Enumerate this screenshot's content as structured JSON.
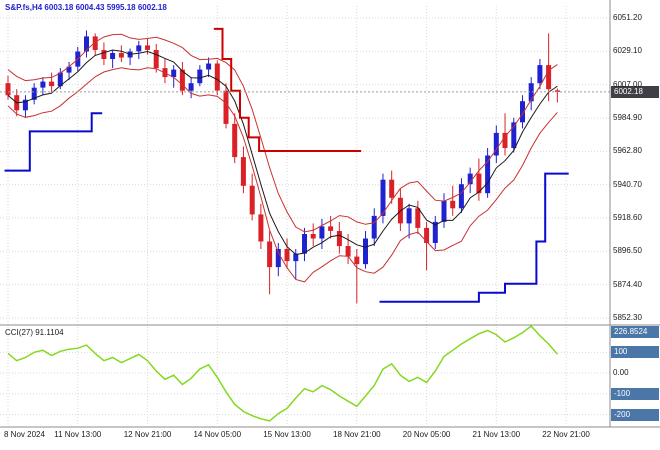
{
  "header": {
    "title_line": "S&P.fs,H4 6003.18 6004.43 5995.18 6002.18",
    "symbol": "S&P.fs",
    "timeframe": "H4",
    "open": "6003.18",
    "high": "6004.43",
    "low": "5995.18",
    "close": "6002.18"
  },
  "indicator": {
    "label": "CCI(27) 91.1104",
    "name": "CCI",
    "period": "27",
    "current_value": "91.1104"
  },
  "colors": {
    "bull": "#1f22cf",
    "bear": "#da2127",
    "trend_up": "#0a0acd",
    "trend_down": "#cc0000",
    "band": "#c83232",
    "ma": "#1a1a1a",
    "cci": "#85d822",
    "grid": "#d9d9d9",
    "axis_text": "#1a1a1a",
    "tag_price_bg": "#3f3f46",
    "tag_cci_bg": "#4a76a8",
    "title_text": "#2222cc"
  },
  "chart_data": {
    "type": "candlestick",
    "title": "S&P.fs H4 with bands, trend stop lines and CCI(27)",
    "last_price": "6002.18",
    "last_price_value": 6002.18,
    "y_axis": {
      "top_value": 6051.2,
      "step": 22.1,
      "labels": [
        "6051.20",
        "6029.10",
        "6007.00",
        "5984.90",
        "5962.80",
        "5940.70",
        "5918.60",
        "5896.50",
        "5874.40",
        "5852.30"
      ]
    },
    "x_labels": [
      {
        "text": "8 Nov 2024",
        "bar": 0
      },
      {
        "text": "11 Nov 13:00",
        "bar": 8
      },
      {
        "text": "12 Nov 21:00",
        "bar": 16
      },
      {
        "text": "14 Nov 05:00",
        "bar": 24
      },
      {
        "text": "15 Nov 13:00",
        "bar": 32
      },
      {
        "text": "18 Nov 21:00",
        "bar": 40
      },
      {
        "text": "20 Nov 05:00",
        "bar": 48
      },
      {
        "text": "21 Nov 13:00",
        "bar": 56
      },
      {
        "text": "22 Nov 21:00",
        "bar": 64
      }
    ],
    "candles": [
      [
        6008,
        6013,
        5997,
        6000
      ],
      [
        6000,
        6004,
        5986,
        5990
      ],
      [
        5990,
        6000,
        5985,
        5997
      ],
      [
        5997,
        6008,
        5994,
        6005
      ],
      [
        6005,
        6012,
        6000,
        6009
      ],
      [
        6009,
        6015,
        6002,
        6006
      ],
      [
        6006,
        6018,
        6004,
        6015
      ],
      [
        6015,
        6022,
        6010,
        6019
      ],
      [
        6019,
        6032,
        6016,
        6029
      ],
      [
        6029,
        6043,
        6025,
        6039
      ],
      [
        6039,
        6041,
        6026,
        6030
      ],
      [
        6030,
        6035,
        6020,
        6024
      ],
      [
        6024,
        6030,
        6018,
        6028
      ],
      [
        6028,
        6033,
        6022,
        6025
      ],
      [
        6025,
        6031,
        6020,
        6029
      ],
      [
        6029,
        6036,
        6024,
        6033
      ],
      [
        6033,
        6038,
        6027,
        6030
      ],
      [
        6030,
        6034,
        6015,
        6018
      ],
      [
        6018,
        6024,
        6008,
        6012
      ],
      [
        6012,
        6020,
        6005,
        6017
      ],
      [
        6017,
        6022,
        6000,
        6003
      ],
      [
        6003,
        6012,
        5998,
        6008
      ],
      [
        6008,
        6020,
        6006,
        6017
      ],
      [
        6017,
        6025,
        6012,
        6021
      ],
      [
        6021,
        6023,
        6000,
        6003
      ],
      [
        6003,
        6008,
        5978,
        5981
      ],
      [
        5981,
        5988,
        5955,
        5959
      ],
      [
        5959,
        5966,
        5935,
        5940
      ],
      [
        5940,
        5948,
        5917,
        5921
      ],
      [
        5921,
        5928,
        5898,
        5903
      ],
      [
        5903,
        5910,
        5868,
        5886
      ],
      [
        5886,
        5902,
        5880,
        5898
      ],
      [
        5898,
        5905,
        5885,
        5890
      ],
      [
        5890,
        5898,
        5878,
        5895
      ],
      [
        5895,
        5912,
        5890,
        5908
      ],
      [
        5908,
        5915,
        5900,
        5905
      ],
      [
        5905,
        5918,
        5898,
        5913
      ],
      [
        5913,
        5920,
        5905,
        5910
      ],
      [
        5910,
        5916,
        5895,
        5900
      ],
      [
        5900,
        5908,
        5888,
        5893
      ],
      [
        5893,
        5898,
        5862,
        5888
      ],
      [
        5888,
        5910,
        5885,
        5905
      ],
      [
        5905,
        5925,
        5900,
        5920
      ],
      [
        5920,
        5948,
        5915,
        5944
      ],
      [
        5944,
        5950,
        5928,
        5932
      ],
      [
        5932,
        5938,
        5910,
        5915
      ],
      [
        5915,
        5928,
        5905,
        5925
      ],
      [
        5925,
        5930,
        5908,
        5912
      ],
      [
        5912,
        5916,
        5884,
        5902
      ],
      [
        5902,
        5920,
        5898,
        5916
      ],
      [
        5916,
        5935,
        5912,
        5930
      ],
      [
        5930,
        5940,
        5920,
        5925
      ],
      [
        5925,
        5945,
        5922,
        5941
      ],
      [
        5941,
        5952,
        5935,
        5948
      ],
      [
        5948,
        5958,
        5930,
        5935
      ],
      [
        5935,
        5965,
        5932,
        5960
      ],
      [
        5960,
        5980,
        5955,
        5975
      ],
      [
        5975,
        5988,
        5960,
        5965
      ],
      [
        5965,
        5985,
        5962,
        5982
      ],
      [
        5982,
        6000,
        5978,
        5996
      ],
      [
        5996,
        6012,
        5990,
        6008
      ],
      [
        6008,
        6024,
        6004,
        6020
      ],
      [
        6020,
        6041,
        5996,
        6004
      ],
      [
        6003.18,
        6004.43,
        5995.18,
        6002.18
      ]
    ],
    "trend_down": [
      {
        "s": 23.6,
        "e": 24.6,
        "p": 6044
      },
      {
        "s": 24.6,
        "e": 25.6,
        "p": 6024
      },
      {
        "s": 25.6,
        "e": 26.6,
        "p": 6003
      },
      {
        "s": 26.6,
        "e": 27.6,
        "p": 5985
      },
      {
        "s": 27.6,
        "e": 28.8,
        "p": 5972
      },
      {
        "s": 28.8,
        "e": 40.5,
        "p": 5963
      }
    ],
    "trend_up_left": [
      {
        "s": -0.4,
        "e": 2.5,
        "p": 5950
      },
      {
        "s": 2.5,
        "e": 9.6,
        "p": 5976
      },
      {
        "s": 9.6,
        "e": 10.8,
        "p": 5988
      }
    ],
    "trend_up_right": [
      {
        "s": 42.6,
        "e": 54,
        "p": 5863
      },
      {
        "s": 54,
        "e": 57,
        "p": 5869
      },
      {
        "s": 57,
        "e": 60.6,
        "p": 5875
      },
      {
        "s": 60.6,
        "e": 61.6,
        "p": 5903
      },
      {
        "s": 61.6,
        "e": 64.3,
        "p": 5948
      }
    ],
    "cci": {
      "max": 226.8524,
      "min": -245,
      "level_values": [
        100,
        0,
        -100,
        -200
      ],
      "scale_labels": [
        {
          "text": "226.8524",
          "value": 226.8524,
          "tag": true
        },
        {
          "text": "100",
          "value": 100,
          "tag": true
        },
        {
          "text": "0.00",
          "value": 0,
          "tag": false
        },
        {
          "text": "-100",
          "value": -100,
          "tag": true
        },
        {
          "text": "-200",
          "value": -200,
          "tag": true
        }
      ],
      "values": [
        95,
        60,
        75,
        100,
        110,
        85,
        105,
        115,
        120,
        135,
        95,
        60,
        75,
        50,
        70,
        90,
        60,
        10,
        -30,
        -10,
        -55,
        -25,
        20,
        40,
        -20,
        -90,
        -150,
        -185,
        -205,
        -220,
        -230,
        -195,
        -170,
        -120,
        -75,
        -90,
        -60,
        -80,
        -110,
        -135,
        -160,
        -110,
        -60,
        20,
        45,
        -10,
        -40,
        -20,
        -45,
        10,
        80,
        110,
        140,
        165,
        190,
        205,
        185,
        150,
        170,
        195,
        226.8524,
        180,
        140,
        91.1104
      ]
    }
  }
}
